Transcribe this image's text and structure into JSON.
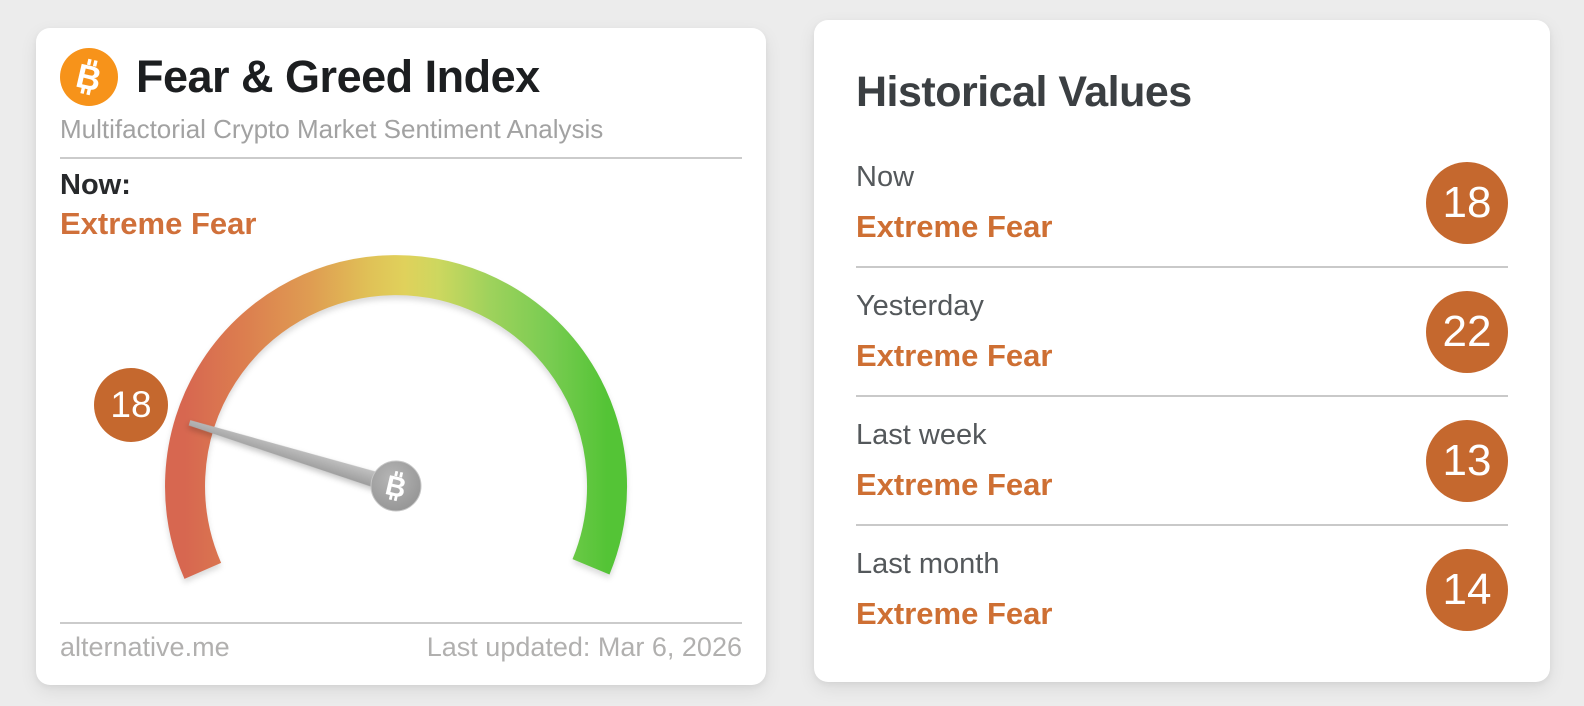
{
  "left_card": {
    "title": "Fear & Greed Index",
    "subtitle": "Multifactorial Crypto Market Sentiment Analysis",
    "now_label": "Now:",
    "now_value": "Extreme Fear",
    "source": "alternative.me",
    "last_updated": "Last updated: Mar 6, 2026",
    "gauge": {
      "type": "gauge",
      "value": 18,
      "min": 0,
      "max": 100,
      "classification": "Extreme Fear",
      "gradient": [
        "#D76750",
        "#DC7E4F",
        "#DF9D52",
        "#E0C257",
        "#E0D15B",
        "#CDD75F",
        "#9FD25C",
        "#7ACC52",
        "#54C436"
      ]
    }
  },
  "right_card": {
    "title": "Historical Values",
    "rows": [
      {
        "label": "Now",
        "value_text": "Extreme Fear",
        "value": 18
      },
      {
        "label": "Yesterday",
        "value_text": "Extreme Fear",
        "value": 22
      },
      {
        "label": "Last week",
        "value_text": "Extreme Fear",
        "value": 13
      },
      {
        "label": "Last month",
        "value_text": "Extreme Fear",
        "value": 14
      }
    ]
  },
  "colors": {
    "page_background": "#ECECEC",
    "bitcoin_orange": "#F7931A",
    "badge_orange": "#C5682E",
    "text_orange": "#D0703A",
    "needle_gray": "#A8A8A8"
  },
  "icons": {
    "bitcoin_logo": "bitcoin-icon",
    "hub": "bitcoin-icon"
  }
}
